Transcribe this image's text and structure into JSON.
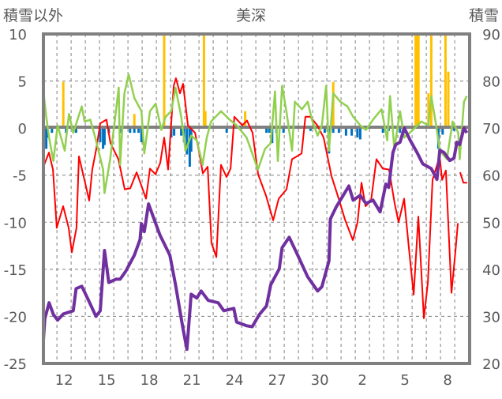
{
  "chart_data": {
    "type": "line",
    "title": "美深",
    "ylabel_left": "積雪以外",
    "ylabel_right": "積雪",
    "ylim_left": [
      -25,
      10
    ],
    "ylim_right": [
      20,
      90
    ],
    "yticks_left": [
      10,
      5,
      0,
      -5,
      -10,
      -15,
      -20,
      -25
    ],
    "yticks_right": [
      90,
      80,
      70,
      60,
      50,
      40,
      30,
      20
    ],
    "xlim_days": [
      0,
      30
    ],
    "xtick_labels": [
      "12",
      "15",
      "18",
      "21",
      "24",
      "27",
      "30",
      "2",
      "5",
      "8"
    ],
    "xtick_days": [
      1.45,
      4.45,
      7.45,
      10.45,
      13.45,
      16.45,
      19.45,
      22.45,
      25.45,
      28.45
    ],
    "grid": true,
    "colors": {
      "red": "#ff0000",
      "green": "#92d050",
      "purple": "#7030a0",
      "blue": "#0070c0",
      "orange": "#ffc000",
      "frame": "#808080"
    },
    "series": [
      {
        "name": "red",
        "axis": "left",
        "color": "#ff0000",
        "points": [
          [
            0,
            -4.1
          ],
          [
            0.39,
            -2.6
          ],
          [
            0.67,
            -4.4
          ],
          [
            0.94,
            -10.6
          ],
          [
            1.39,
            -8.3
          ],
          [
            1.78,
            -10.6
          ],
          [
            2.0,
            -13.2
          ],
          [
            2.33,
            -10.6
          ],
          [
            2.5,
            -3.0
          ],
          [
            2.89,
            -5.5
          ],
          [
            3.22,
            -7.7
          ],
          [
            3.44,
            -4.4
          ],
          [
            3.72,
            -2.2
          ],
          [
            4.0,
            0.5
          ],
          [
            4.44,
            0.9
          ],
          [
            4.72,
            -1.6
          ],
          [
            5.28,
            -3.3
          ],
          [
            5.72,
            -6.5
          ],
          [
            6.11,
            -6.4
          ],
          [
            6.56,
            -4.7
          ],
          [
            7.22,
            -7.5
          ],
          [
            7.5,
            -4.3
          ],
          [
            7.89,
            -4.9
          ],
          [
            8.22,
            -3.7
          ],
          [
            8.5,
            -1.0
          ],
          [
            8.78,
            -4.4
          ],
          [
            9.17,
            4.5
          ],
          [
            9.33,
            5.3
          ],
          [
            9.61,
            3.7
          ],
          [
            9.83,
            4.7
          ],
          [
            10.17,
            0.3
          ],
          [
            10.67,
            -0.5
          ],
          [
            10.94,
            -2.4
          ],
          [
            11.22,
            -4.8
          ],
          [
            11.56,
            -4.1
          ],
          [
            11.83,
            -12.2
          ],
          [
            12.17,
            -13.7
          ],
          [
            12.5,
            -3.9
          ],
          [
            12.89,
            -5.2
          ],
          [
            13.17,
            -4.3
          ],
          [
            13.44,
            1.2
          ],
          [
            14.0,
            0.3
          ],
          [
            14.33,
            0.8
          ],
          [
            14.72,
            -0.5
          ],
          [
            15.11,
            -4.9
          ],
          [
            15.67,
            -7.2
          ],
          [
            16.17,
            -9.8
          ],
          [
            16.56,
            -7.5
          ],
          [
            17.11,
            -6.5
          ],
          [
            17.5,
            -3.3
          ],
          [
            18.17,
            -2.7
          ],
          [
            18.44,
            1.2
          ],
          [
            18.78,
            1.2
          ],
          [
            19.28,
            0.3
          ],
          [
            19.72,
            -1.0
          ],
          [
            20.28,
            -5.1
          ],
          [
            20.83,
            -7.7
          ],
          [
            21.22,
            -9.7
          ],
          [
            21.78,
            -11.9
          ],
          [
            22.11,
            -10.0
          ],
          [
            22.39,
            -5.8
          ],
          [
            22.67,
            -8.3
          ],
          [
            23.06,
            -7.7
          ],
          [
            23.44,
            -3.3
          ],
          [
            23.89,
            -4.3
          ],
          [
            24.33,
            -4.4
          ],
          [
            24.72,
            -8.0
          ],
          [
            25.0,
            -10.0
          ],
          [
            25.39,
            -7.5
          ],
          [
            25.72,
            -12.7
          ],
          [
            26.06,
            -17.7
          ],
          [
            26.39,
            -9.4
          ],
          [
            26.78,
            -20.2
          ],
          [
            27.06,
            -16.4
          ],
          [
            27.39,
            -5.5
          ],
          [
            27.89,
            -3.0
          ],
          [
            28.06,
            -5.5
          ],
          [
            28.33,
            -4.5
          ],
          [
            28.72,
            -17.5
          ],
          [
            29.0,
            -13.1
          ],
          [
            29.17,
            -10.1
          ],
          null,
          [
            29.33,
            -4.7
          ],
          [
            29.56,
            -5.8
          ],
          [
            29.83,
            -5.8
          ]
        ]
      },
      {
        "name": "green",
        "axis": "left",
        "color": "#92d050",
        "points": [
          [
            0,
            3.9
          ],
          [
            0.2,
            1.2
          ],
          [
            0.4,
            -1.0
          ],
          [
            0.7,
            -3.5
          ],
          [
            1.0,
            0.3
          ],
          [
            1.5,
            -2.4
          ],
          [
            1.8,
            1.5
          ],
          [
            2.1,
            -0.5
          ],
          [
            2.7,
            2.3
          ],
          [
            2.9,
            0.7
          ],
          [
            3.3,
            0.9
          ],
          [
            3.7,
            -1.3
          ],
          [
            4.2,
            -4.4
          ],
          [
            4.3,
            -6.9
          ],
          [
            4.7,
            -3.3
          ],
          [
            5.3,
            4.3
          ],
          [
            5.4,
            -3.9
          ],
          [
            5.7,
            3.7
          ],
          [
            6.0,
            5.7
          ],
          [
            6.4,
            3.2
          ],
          [
            6.9,
            1.8
          ],
          [
            7.1,
            -2.7
          ],
          [
            7.5,
            1.8
          ],
          [
            7.9,
            2.6
          ],
          [
            8.3,
            -0.2
          ],
          [
            8.6,
            1.2
          ],
          [
            9.0,
            1.8
          ],
          [
            9.3,
            4.3
          ],
          [
            9.7,
            1.2
          ],
          [
            10.0,
            -2.4
          ],
          [
            10.4,
            -0.8
          ],
          [
            10.8,
            -1.3
          ],
          [
            11.2,
            -3.9
          ],
          [
            11.5,
            -1.0
          ],
          [
            11.8,
            0.7
          ],
          [
            12.5,
            1.8
          ],
          [
            13.1,
            0.9
          ],
          [
            13.6,
            0.3
          ],
          [
            14.3,
            -1.0
          ],
          [
            15.1,
            -4.4
          ],
          [
            15.6,
            -2.2
          ],
          [
            16.0,
            -1.6
          ],
          [
            16.3,
            3.9
          ],
          [
            16.5,
            -3.5
          ],
          [
            16.8,
            4.5
          ],
          [
            17.1,
            1.8
          ],
          [
            17.5,
            -2.4
          ],
          [
            17.7,
            2.8
          ],
          [
            18.2,
            2.0
          ],
          [
            18.6,
            2.8
          ],
          [
            18.9,
            0.9
          ],
          [
            19.3,
            -0.8
          ],
          [
            19.6,
            0.3
          ],
          [
            19.9,
            4.5
          ],
          [
            20.1,
            -2.4
          ],
          [
            20.4,
            3.7
          ],
          [
            20.9,
            2.8
          ],
          [
            21.4,
            2.3
          ],
          [
            21.8,
            1.2
          ],
          [
            22.3,
            0.3
          ],
          [
            22.7,
            -0.2
          ],
          [
            23.2,
            0.9
          ],
          [
            23.8,
            2.0
          ],
          [
            24.2,
            -1.3
          ],
          [
            24.4,
            3.4
          ],
          [
            24.7,
            -2.2
          ],
          [
            25.1,
            1.8
          ],
          [
            25.4,
            -1.0
          ],
          [
            26.0,
            -0.2
          ],
          [
            26.6,
            0.7
          ],
          [
            27.1,
            0.3
          ],
          [
            27.3,
            3.4
          ],
          [
            27.6,
            0.7
          ],
          [
            27.9,
            -2.4
          ],
          [
            28.4,
            -3.3
          ],
          [
            28.8,
            0.7
          ],
          [
            29.2,
            -0.5
          ],
          [
            29.3,
            -3.3
          ],
          [
            29.6,
            2.8
          ],
          [
            29.8,
            3.4
          ]
        ]
      },
      {
        "name": "purple",
        "axis": "right",
        "color": "#7030a0",
        "points": [
          [
            0,
            25.0
          ],
          [
            0.1,
            29.5
          ],
          [
            0.4,
            32.9
          ],
          [
            0.7,
            30.4
          ],
          [
            1.0,
            29.2
          ],
          [
            1.4,
            30.5
          ],
          [
            2.1,
            31.2
          ],
          [
            2.3,
            35.9
          ],
          [
            2.7,
            36.4
          ],
          [
            3.1,
            33.9
          ],
          [
            3.7,
            30.0
          ],
          [
            4.0,
            31.2
          ],
          [
            4.3,
            44.0
          ],
          [
            4.6,
            37.2
          ],
          [
            5.1,
            37.9
          ],
          [
            5.4,
            37.9
          ],
          [
            5.8,
            39.6
          ],
          [
            6.4,
            43.0
          ],
          [
            6.8,
            46.3
          ],
          [
            6.9,
            49.7
          ],
          [
            7.1,
            48.0
          ],
          [
            7.4,
            53.9
          ],
          [
            7.7,
            51.4
          ],
          [
            8.2,
            47.3
          ],
          [
            8.9,
            43.0
          ],
          [
            9.3,
            36.7
          ],
          [
            9.8,
            27.8
          ],
          [
            10.1,
            23.0
          ],
          [
            10.4,
            34.7
          ],
          [
            10.8,
            33.9
          ],
          [
            11.1,
            35.4
          ],
          [
            11.6,
            33.4
          ],
          [
            12.3,
            32.9
          ],
          [
            12.7,
            31.2
          ],
          [
            13.4,
            31.7
          ],
          [
            13.6,
            28.8
          ],
          [
            14.3,
            28.0
          ],
          [
            14.7,
            27.8
          ],
          [
            15.2,
            30.4
          ],
          [
            15.7,
            32.2
          ],
          [
            16.0,
            36.7
          ],
          [
            16.6,
            40.1
          ],
          [
            16.8,
            44.6
          ],
          [
            17.3,
            46.8
          ],
          [
            17.9,
            43.0
          ],
          [
            18.6,
            38.4
          ],
          [
            19.3,
            35.4
          ],
          [
            19.6,
            36.3
          ],
          [
            20.1,
            41.8
          ],
          [
            20.2,
            50.7
          ],
          [
            20.6,
            53.2
          ],
          [
            21.0,
            55.2
          ],
          [
            21.5,
            57.7
          ],
          [
            21.8,
            54.7
          ],
          [
            22.3,
            55.7
          ],
          [
            22.7,
            54.0
          ],
          [
            23.2,
            54.7
          ],
          [
            23.7,
            52.2
          ],
          [
            24.1,
            58.1
          ],
          [
            24.3,
            57.4
          ],
          [
            24.6,
            64.8
          ],
          [
            24.8,
            66.5
          ],
          [
            25.1,
            67.0
          ],
          [
            25.4,
            70.0
          ],
          [
            25.8,
            67.5
          ],
          [
            26.3,
            64.8
          ],
          [
            26.7,
            62.4
          ],
          [
            27.3,
            61.4
          ],
          [
            27.7,
            59.1
          ],
          [
            27.9,
            65.3
          ],
          [
            28.2,
            64.8
          ],
          [
            28.6,
            63.1
          ],
          [
            28.9,
            63.6
          ],
          [
            29.1,
            67.0
          ],
          [
            29.3,
            66.5
          ],
          [
            29.6,
            70.0
          ],
          [
            29.8,
            69.0
          ]
        ]
      }
    ],
    "bars": [
      {
        "name": "blue",
        "axis": "left",
        "color": "#0070c0",
        "points": [
          [
            0.0,
            -0.5
          ],
          [
            0.2,
            -2.2
          ],
          [
            0.3,
            -1.0
          ],
          [
            0.6,
            -0.5
          ],
          [
            1.6,
            -0.5
          ],
          [
            2.3,
            -0.5
          ],
          [
            4.0,
            -1.5
          ],
          [
            4.2,
            -2.2
          ],
          [
            4.3,
            -1.8
          ],
          [
            4.6,
            -0.5
          ],
          [
            5.4,
            -0.5
          ],
          [
            6.1,
            -0.5
          ],
          [
            6.4,
            -0.5
          ],
          [
            6.7,
            -0.5
          ],
          [
            6.9,
            -1.5
          ],
          [
            9.0,
            -1.0
          ],
          [
            9.2,
            -0.8
          ],
          [
            9.7,
            -0.8
          ],
          [
            9.9,
            -1.5
          ],
          [
            10.1,
            -2.8
          ],
          [
            10.3,
            -4.1
          ],
          [
            10.4,
            -2.5
          ],
          [
            12.9,
            -0.5
          ],
          [
            15.7,
            -0.5
          ],
          [
            15.9,
            -0.5
          ],
          [
            16.1,
            -1.6
          ],
          [
            16.4,
            -0.5
          ],
          [
            16.9,
            -0.5
          ],
          [
            18.8,
            -0.3
          ],
          [
            19.8,
            -0.5
          ],
          [
            20.1,
            -2.7
          ],
          [
            20.4,
            -0.5
          ],
          [
            20.8,
            -0.5
          ],
          [
            21.3,
            -0.8
          ],
          [
            21.7,
            -0.8
          ],
          [
            22.1,
            -1.0
          ],
          [
            22.3,
            -1.2
          ],
          [
            23.9,
            -0.5
          ],
          [
            24.3,
            -0.3
          ],
          [
            25.1,
            -0.5
          ],
          [
            27.8,
            -2.2
          ],
          [
            28.1,
            -0.7
          ],
          [
            28.9,
            -0.3
          ]
        ]
      },
      {
        "name": "orange",
        "axis": "left",
        "color": "#ffc000",
        "points": [
          [
            1.4,
            4.9
          ],
          [
            6.4,
            1.5
          ],
          [
            8.5,
            10
          ],
          [
            11.3,
            10
          ],
          [
            11.4,
            1.8
          ],
          [
            14.2,
            1.8
          ],
          [
            20.4,
            4.9
          ],
          [
            26.2,
            10
          ],
          [
            26.3,
            10
          ],
          [
            26.4,
            10
          ],
          [
            27.1,
            3.7
          ],
          [
            27.3,
            10
          ],
          [
            28.3,
            10
          ],
          [
            28.5,
            6
          ]
        ]
      }
    ]
  }
}
